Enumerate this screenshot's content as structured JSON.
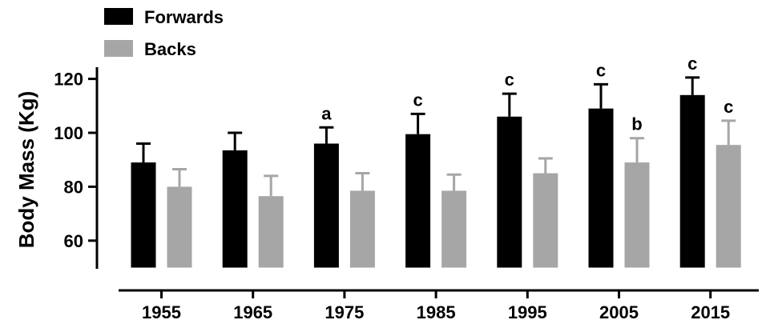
{
  "chart_data": {
    "type": "bar",
    "ylabel": "Body Mass (Kg)",
    "xlabel": "",
    "categories": [
      "1955",
      "1965",
      "1975",
      "1985",
      "1995",
      "2005",
      "2015"
    ],
    "ylim": [
      50,
      125
    ],
    "yticks": [
      60,
      80,
      100,
      120
    ],
    "grid": false,
    "legend_position": "top-left",
    "series": [
      {
        "name": "Forwards",
        "color": "#000000",
        "values": [
          89,
          93.5,
          96,
          99.5,
          106,
          109,
          114
        ],
        "errors": [
          7,
          6.5,
          6,
          7.5,
          8.5,
          9,
          6.5
        ],
        "annotations": [
          "",
          "",
          "a",
          "c",
          "c",
          "c",
          "c"
        ]
      },
      {
        "name": "Backs",
        "color": "#a6a6a6",
        "values": [
          80,
          76.5,
          78.5,
          78.5,
          85,
          89,
          95.5
        ],
        "errors": [
          6.5,
          7.5,
          6.5,
          6,
          5.5,
          9,
          9
        ],
        "annotations": [
          "",
          "",
          "",
          "",
          "",
          "b",
          "c"
        ]
      }
    ]
  }
}
